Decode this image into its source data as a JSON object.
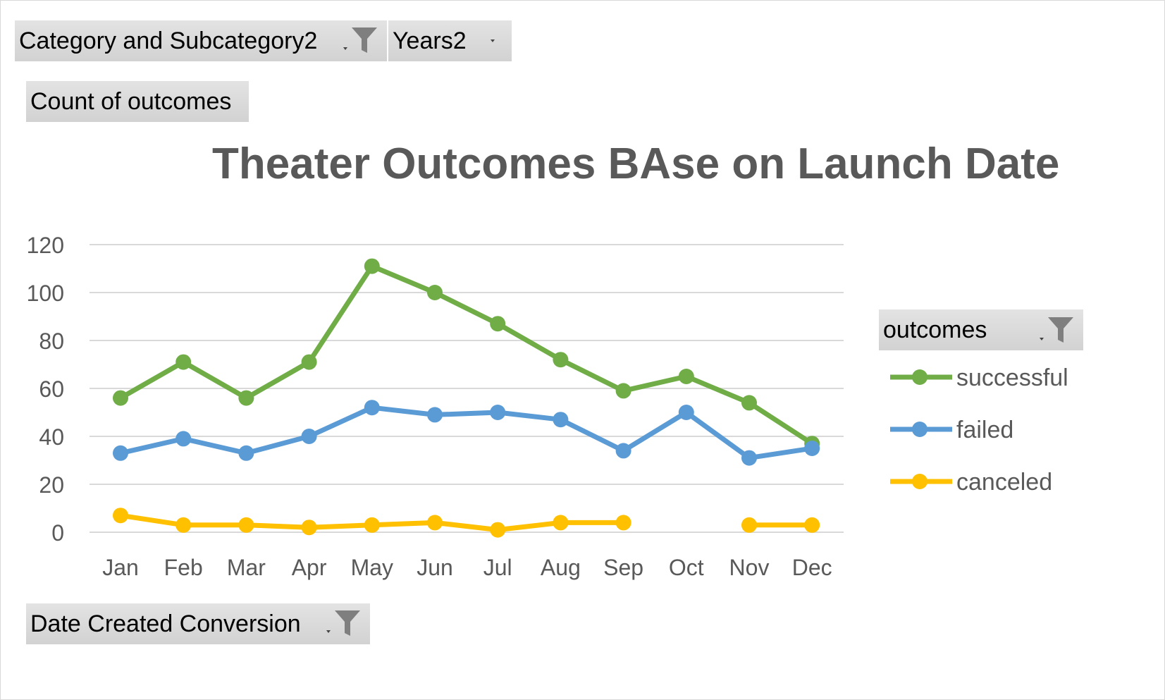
{
  "pivot_fields": {
    "filter1_label": "Category and Subcategory2",
    "filter2_label": "Years2",
    "values_label": "Count of outcomes",
    "axis_label": "Date Created Conversion",
    "legend_field_label": "outcomes"
  },
  "icons": {
    "filter": "funnel-filter-icon",
    "dropdown": "dropdown-arrow-icon"
  },
  "colors": {
    "successful": "#70ad47",
    "failed": "#5b9bd5",
    "canceled": "#ffc000",
    "gridline": "#d9d9d9",
    "text": "#595959"
  },
  "chart_data": {
    "type": "line",
    "title": "Theater Outcomes BAse on Launch Date",
    "xlabel": "",
    "ylabel": "",
    "categories": [
      "Jan",
      "Feb",
      "Mar",
      "Apr",
      "May",
      "Jun",
      "Jul",
      "Aug",
      "Sep",
      "Oct",
      "Nov",
      "Dec"
    ],
    "ylim": [
      0,
      120
    ],
    "yticks": [
      0,
      20,
      40,
      60,
      80,
      100,
      120
    ],
    "grid": true,
    "legend_position": "right",
    "series": [
      {
        "name": "successful",
        "values": [
          56,
          71,
          56,
          71,
          111,
          100,
          87,
          72,
          59,
          65,
          54,
          37
        ]
      },
      {
        "name": "failed",
        "values": [
          33,
          39,
          33,
          40,
          52,
          49,
          50,
          47,
          34,
          50,
          31,
          35
        ]
      },
      {
        "name": "canceled",
        "values": [
          7,
          3,
          3,
          2,
          3,
          4,
          1,
          4,
          4,
          null,
          3,
          3
        ]
      }
    ]
  }
}
